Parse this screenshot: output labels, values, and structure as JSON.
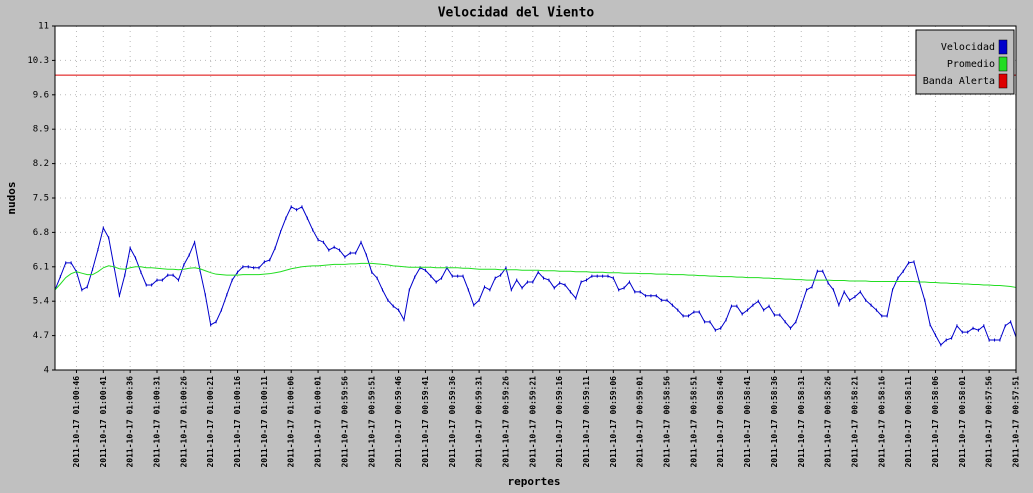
{
  "chart_data": {
    "type": "line",
    "title": "Velocidad del Viento",
    "xlabel": "reportes",
    "ylabel": "nudos",
    "ylim": [
      4,
      11
    ],
    "yticks": [
      4,
      4.7,
      5.4,
      6.1,
      6.8,
      7.5,
      8.2,
      8.9,
      9.6,
      10.3,
      11
    ],
    "grid": true,
    "legend": "upper right",
    "categories": [
      null,
      null,
      null,
      null,
      "2011-10-17 01:00:46",
      null,
      null,
      null,
      null,
      "2011-10-17 01:00:41",
      null,
      null,
      null,
      null,
      "2011-10-17 01:00:36",
      null,
      null,
      null,
      null,
      "2011-10-17 01:00:31",
      null,
      null,
      null,
      null,
      "2011-10-17 01:00:26",
      null,
      null,
      null,
      null,
      "2011-10-17 01:00:21",
      null,
      null,
      null,
      null,
      "2011-10-17 01:00:16",
      null,
      null,
      null,
      null,
      "2011-10-17 01:00:11",
      null,
      null,
      null,
      null,
      "2011-10-17 01:00:06",
      null,
      null,
      null,
      null,
      "2011-10-17 01:00:01",
      null,
      null,
      null,
      null,
      "2011-10-17 00:59:56",
      null,
      null,
      null,
      null,
      "2011-10-17 00:59:51",
      null,
      null,
      null,
      null,
      "2011-10-17 00:59:46",
      null,
      null,
      null,
      null,
      "2011-10-17 00:59:41",
      null,
      null,
      null,
      null,
      "2011-10-17 00:59:36",
      null,
      null,
      null,
      null,
      "2011-10-17 00:59:31",
      null,
      null,
      null,
      null,
      "2011-10-17 00:59:26",
      null,
      null,
      null,
      null,
      "2011-10-17 00:59:21",
      null,
      null,
      null,
      null,
      "2011-10-17 00:59:16",
      null,
      null,
      null,
      null,
      "2011-10-17 00:59:11",
      null,
      null,
      null,
      null,
      "2011-10-17 00:59:06",
      null,
      null,
      null,
      null,
      "2011-10-17 00:59:01",
      null,
      null,
      null,
      null,
      "2011-10-17 00:58:56",
      null,
      null,
      null,
      null,
      "2011-10-17 00:58:51",
      null,
      null,
      null,
      null,
      "2011-10-17 00:58:46",
      null,
      null,
      null,
      null,
      "2011-10-17 00:58:41",
      null,
      null,
      null,
      null,
      "2011-10-17 00:58:36",
      null,
      null,
      null,
      null,
      "2011-10-17 00:58:31",
      null,
      null,
      null,
      null,
      "2011-10-17 00:58:26",
      null,
      null,
      null,
      null,
      "2011-10-17 00:58:21",
      null,
      null,
      null,
      null,
      "2011-10-17 00:58:16",
      null,
      null,
      null,
      null,
      "2011-10-17 00:58:11",
      null,
      null,
      null,
      null,
      "2011-10-17 00:58:06",
      null,
      null,
      null,
      null,
      "2011-10-17 00:58:01",
      null,
      null,
      null,
      null,
      "2011-10-17 00:57:56",
      null,
      null,
      null,
      null,
      "2011-10-17 00:57:51"
    ],
    "series": [
      {
        "name": "Velocidad",
        "color": "#0000cc",
        "values": [
          5.63,
          5.9,
          6.18,
          6.18,
          6.0,
          5.63,
          5.69,
          6.05,
          6.45,
          6.89,
          6.69,
          6.1,
          5.51,
          5.93,
          6.48,
          6.28,
          5.99,
          5.73,
          5.73,
          5.83,
          5.83,
          5.93,
          5.93,
          5.83,
          6.14,
          6.34,
          6.6,
          6.03,
          5.53,
          4.92,
          4.98,
          5.22,
          5.53,
          5.83,
          5.99,
          6.1,
          6.1,
          6.08,
          6.08,
          6.2,
          6.24,
          6.48,
          6.81,
          7.09,
          7.32,
          7.26,
          7.32,
          7.09,
          6.85,
          6.65,
          6.6,
          6.44,
          6.5,
          6.44,
          6.3,
          6.38,
          6.38,
          6.6,
          6.34,
          5.99,
          5.87,
          5.63,
          5.42,
          5.3,
          5.22,
          5.02,
          5.63,
          5.89,
          6.08,
          6.03,
          5.91,
          5.79,
          5.87,
          6.08,
          5.91,
          5.91,
          5.91,
          5.63,
          5.32,
          5.42,
          5.69,
          5.63,
          5.87,
          5.93,
          6.08,
          5.63,
          5.83,
          5.67,
          5.79,
          5.79,
          5.99,
          5.87,
          5.83,
          5.67,
          5.77,
          5.73,
          5.59,
          5.46,
          5.79,
          5.83,
          5.91,
          5.91,
          5.91,
          5.91,
          5.87,
          5.63,
          5.67,
          5.79,
          5.59,
          5.59,
          5.51,
          5.51,
          5.51,
          5.42,
          5.42,
          5.32,
          5.22,
          5.1,
          5.1,
          5.18,
          5.18,
          4.98,
          4.98,
          4.81,
          4.85,
          5.02,
          5.3,
          5.3,
          5.14,
          5.22,
          5.32,
          5.4,
          5.22,
          5.3,
          5.12,
          5.12,
          4.98,
          4.85,
          4.98,
          5.3,
          5.63,
          5.69,
          6.01,
          6.01,
          5.77,
          5.63,
          5.32,
          5.59,
          5.42,
          5.49,
          5.59,
          5.42,
          5.32,
          5.22,
          5.1,
          5.1,
          5.63,
          5.87,
          6.01,
          6.18,
          6.2,
          5.79,
          5.42,
          4.92,
          4.71,
          4.51,
          4.61,
          4.65,
          4.9,
          4.77,
          4.77,
          4.85,
          4.81,
          4.9,
          4.61,
          4.61,
          4.61,
          4.9,
          4.98,
          4.67
        ]
      },
      {
        "name": "Promedio",
        "color": "#22dd22",
        "values": [
          5.63,
          5.75,
          5.88,
          5.96,
          6.0,
          5.97,
          5.94,
          5.94,
          6.0,
          6.08,
          6.12,
          6.1,
          6.06,
          6.05,
          6.08,
          6.1,
          6.1,
          6.08,
          6.08,
          6.07,
          6.06,
          6.05,
          6.05,
          6.04,
          6.05,
          6.07,
          6.08,
          6.06,
          6.02,
          5.98,
          5.95,
          5.94,
          5.93,
          5.93,
          5.93,
          5.94,
          5.94,
          5.94,
          5.94,
          5.95,
          5.96,
          5.98,
          6.0,
          6.03,
          6.06,
          6.08,
          6.1,
          6.11,
          6.12,
          6.12,
          6.13,
          6.14,
          6.15,
          6.15,
          6.15,
          6.16,
          6.16,
          6.17,
          6.17,
          6.17,
          6.16,
          6.15,
          6.14,
          6.12,
          6.11,
          6.1,
          6.09,
          6.09,
          6.09,
          6.09,
          6.09,
          6.08,
          6.08,
          6.08,
          6.08,
          6.08,
          6.07,
          6.07,
          6.06,
          6.05,
          6.05,
          6.05,
          6.05,
          6.04,
          6.04,
          6.04,
          6.04,
          6.03,
          6.03,
          6.03,
          6.03,
          6.02,
          6.02,
          6.02,
          6.01,
          6.01,
          6.01,
          6.0,
          6.0,
          6.0,
          5.99,
          5.99,
          5.99,
          5.98,
          5.98,
          5.98,
          5.97,
          5.97,
          5.97,
          5.96,
          5.96,
          5.96,
          5.95,
          5.95,
          5.95,
          5.94,
          5.94,
          5.94,
          5.93,
          5.93,
          5.92,
          5.92,
          5.91,
          5.91,
          5.9,
          5.9,
          5.9,
          5.89,
          5.89,
          5.88,
          5.88,
          5.88,
          5.87,
          5.87,
          5.86,
          5.86,
          5.85,
          5.85,
          5.84,
          5.84,
          5.83,
          5.83,
          5.83,
          5.83,
          5.83,
          5.82,
          5.82,
          5.82,
          5.81,
          5.81,
          5.81,
          5.81,
          5.8,
          5.8,
          5.8,
          5.8,
          5.8,
          5.8,
          5.8,
          5.8,
          5.8,
          5.79,
          5.79,
          5.78,
          5.78,
          5.77,
          5.77,
          5.76,
          5.76,
          5.75,
          5.75,
          5.74,
          5.74,
          5.73,
          5.73,
          5.72,
          5.72,
          5.71,
          5.7,
          5.68
        ]
      },
      {
        "name": "Banda Alerta",
        "color": "#dd0000",
        "values": [
          10,
          10,
          10,
          10,
          10,
          10,
          10,
          10,
          10,
          10,
          10,
          10,
          10,
          10,
          10,
          10,
          10,
          10,
          10,
          10,
          10,
          10,
          10,
          10,
          10,
          10,
          10,
          10,
          10,
          10,
          10,
          10,
          10,
          10,
          10,
          10,
          10,
          10,
          10,
          10,
          10,
          10,
          10,
          10,
          10,
          10,
          10,
          10,
          10,
          10,
          10,
          10,
          10,
          10,
          10,
          10,
          10,
          10,
          10,
          10,
          10,
          10,
          10,
          10,
          10,
          10,
          10,
          10,
          10,
          10,
          10,
          10,
          10,
          10,
          10,
          10,
          10,
          10,
          10,
          10,
          10,
          10,
          10,
          10,
          10,
          10,
          10,
          10,
          10,
          10,
          10,
          10,
          10,
          10,
          10,
          10,
          10,
          10,
          10,
          10,
          10,
          10,
          10,
          10,
          10,
          10,
          10,
          10,
          10,
          10,
          10,
          10,
          10,
          10,
          10,
          10,
          10,
          10,
          10,
          10,
          10,
          10,
          10,
          10,
          10,
          10,
          10,
          10,
          10,
          10,
          10,
          10,
          10,
          10,
          10,
          10,
          10,
          10,
          10,
          10,
          10,
          10,
          10,
          10,
          10,
          10,
          10,
          10,
          10,
          10,
          10,
          10,
          10,
          10,
          10,
          10,
          10,
          10,
          10,
          10,
          10,
          10,
          10,
          10,
          10,
          10,
          10,
          10,
          10,
          10,
          10,
          10,
          10,
          10,
          10,
          10,
          10,
          10,
          10,
          10
        ]
      }
    ]
  }
}
